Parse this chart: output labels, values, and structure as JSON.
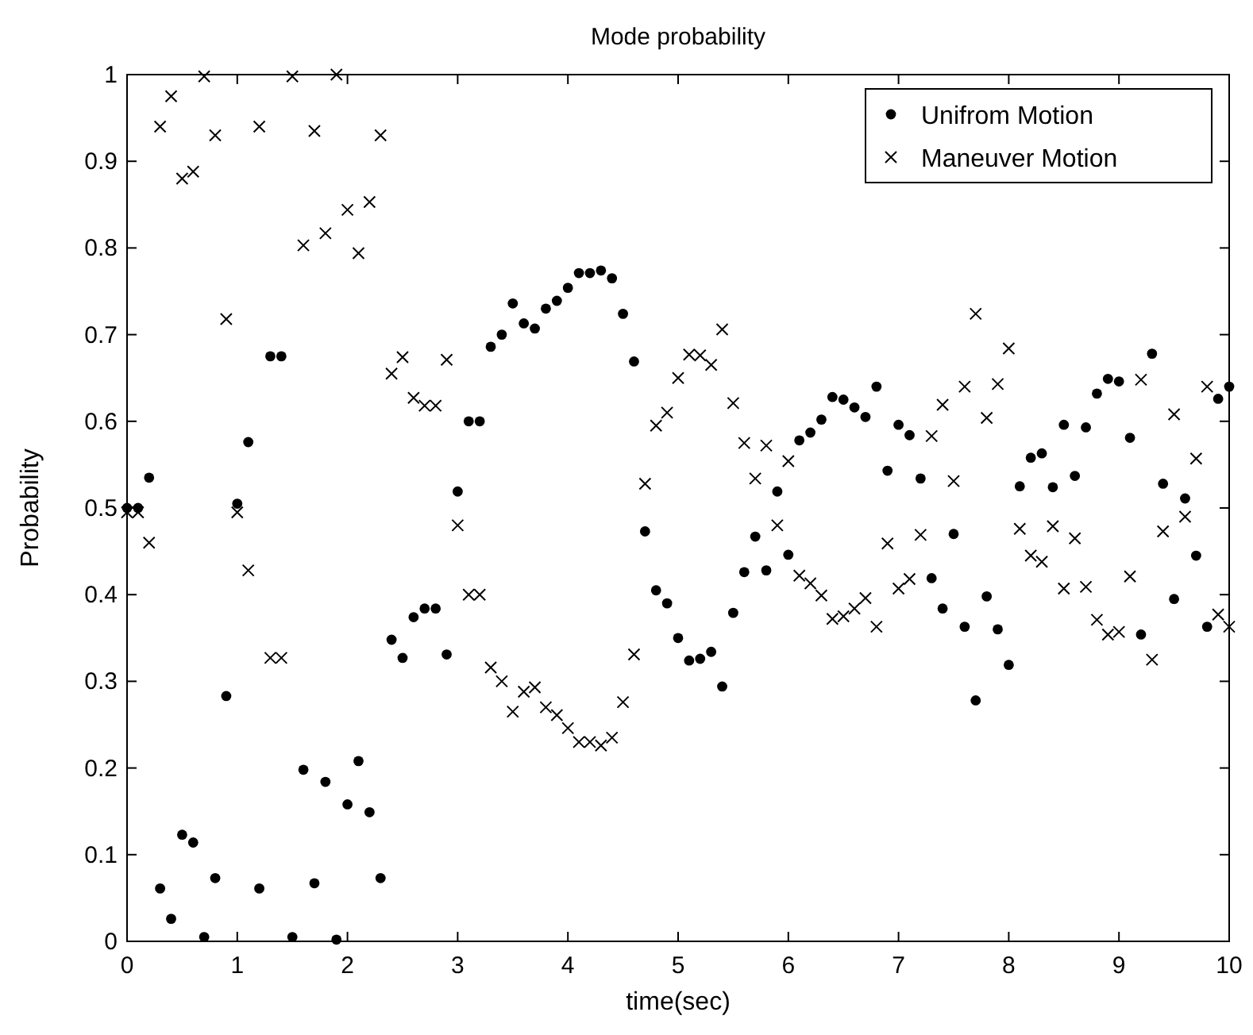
{
  "chart_data": {
    "type": "scatter",
    "title": "Mode probability",
    "xlabel": "time(sec)",
    "ylabel": "Probability",
    "x": [
      0,
      0.1,
      0.2,
      0.3,
      0.4,
      0.5,
      0.6,
      0.7,
      0.8,
      0.9,
      1,
      1.1,
      1.2,
      1.3,
      1.4,
      1.5,
      1.6,
      1.7,
      1.8,
      1.9,
      2,
      2.1,
      2.2,
      2.3,
      2.4,
      2.5,
      2.6,
      2.7,
      2.8,
      2.9,
      3,
      3.1,
      3.2,
      3.3,
      3.4,
      3.5,
      3.6,
      3.7,
      3.8,
      3.9,
      4,
      4.1,
      4.2,
      4.3,
      4.4,
      4.5,
      4.6,
      4.7,
      4.8,
      4.9,
      5,
      5.1,
      5.2,
      5.3,
      5.4,
      5.5,
      5.6,
      5.7,
      5.8,
      5.9,
      6,
      6.1,
      6.2,
      6.3,
      6.4,
      6.5,
      6.6,
      6.7,
      6.8,
      6.9,
      7,
      7.1,
      7.2,
      7.3,
      7.4,
      7.5,
      7.6,
      7.7,
      7.8,
      7.9,
      8,
      8.1,
      8.2,
      8.3,
      8.4,
      8.5,
      8.6,
      8.7,
      8.8,
      8.9,
      9,
      9.1,
      9.2,
      9.3,
      9.4,
      9.5,
      9.6,
      9.7,
      9.8,
      9.9,
      10
    ],
    "series": [
      {
        "name": "Unifrom Motion",
        "color": "#000000",
        "marker": "circle",
        "values": [
          0.5,
          0.5,
          0.535,
          0.061,
          0.026,
          0.123,
          0.114,
          0.005,
          0.073,
          0.283,
          0.505,
          0.576,
          0.061,
          0.675,
          0.675,
          0.005,
          0.198,
          0.067,
          0.184,
          0.002,
          0.158,
          0.208,
          0.149,
          0.073,
          0.348,
          0.327,
          0.374,
          0.384,
          0.384,
          0.331,
          0.519,
          0.6,
          0.6,
          0.686,
          0.7,
          0.736,
          0.713,
          0.707,
          0.73,
          0.739,
          0.754,
          0.771,
          0.771,
          0.774,
          0.765,
          0.724,
          0.669,
          0.473,
          0.405,
          0.39,
          0.35,
          0.324,
          0.326,
          0.334,
          0.294,
          0.379,
          0.426,
          0.467,
          0.428,
          0.519,
          0.446,
          0.578,
          0.587,
          0.602,
          0.628,
          0.625,
          0.616,
          0.605,
          0.64,
          0.543,
          0.596,
          0.584,
          0.534,
          0.419,
          0.384,
          0.47,
          0.363,
          0.278,
          0.398,
          0.36,
          0.319,
          0.525,
          0.558,
          0.563,
          0.524,
          0.596,
          0.537,
          0.593,
          0.632,
          0.649,
          0.646,
          0.581,
          0.354,
          0.678,
          0.528,
          0.395,
          0.511,
          0.445,
          0.363,
          0.626,
          0.64
        ]
      },
      {
        "name": "Maneuver Motion",
        "color": "#000000",
        "marker": "cross",
        "values": [
          0.495,
          0.495,
          0.46,
          0.94,
          0.975,
          0.88,
          0.888,
          0.998,
          0.93,
          0.718,
          0.495,
          0.428,
          0.94,
          0.327,
          0.327,
          0.998,
          0.803,
          0.935,
          0.817,
          1,
          0.844,
          0.794,
          0.853,
          0.93,
          0.655,
          0.674,
          0.627,
          0.618,
          0.618,
          0.671,
          0.48,
          0.4,
          0.4,
          0.316,
          0.3,
          0.265,
          0.288,
          0.293,
          0.27,
          0.261,
          0.246,
          0.23,
          0.23,
          0.226,
          0.235,
          0.276,
          0.331,
          0.528,
          0.595,
          0.61,
          0.65,
          0.677,
          0.676,
          0.665,
          0.706,
          0.621,
          0.575,
          0.534,
          0.572,
          0.48,
          0.554,
          0.422,
          0.413,
          0.399,
          0.372,
          0.375,
          0.384,
          0.396,
          0.363,
          0.459,
          0.407,
          0.418,
          0.469,
          0.583,
          0.619,
          0.531,
          0.64,
          0.724,
          0.604,
          0.643,
          0.684,
          0.476,
          0.445,
          0.438,
          0.479,
          0.407,
          0.465,
          0.409,
          0.371,
          0.354,
          0.357,
          0.421,
          0.648,
          0.325,
          0.473,
          0.608,
          0.49,
          0.557,
          0.64,
          0.377,
          0.363
        ]
      }
    ],
    "xlim": [
      0,
      10
    ],
    "ylim": [
      0,
      1
    ],
    "xticks": [
      0,
      1,
      2,
      3,
      4,
      5,
      6,
      7,
      8,
      9,
      10
    ],
    "yticks": [
      0,
      0.1,
      0.2,
      0.3,
      0.4,
      0.5,
      0.6,
      0.7,
      0.8,
      0.9,
      1
    ],
    "grid": false,
    "legend": "top right"
  }
}
